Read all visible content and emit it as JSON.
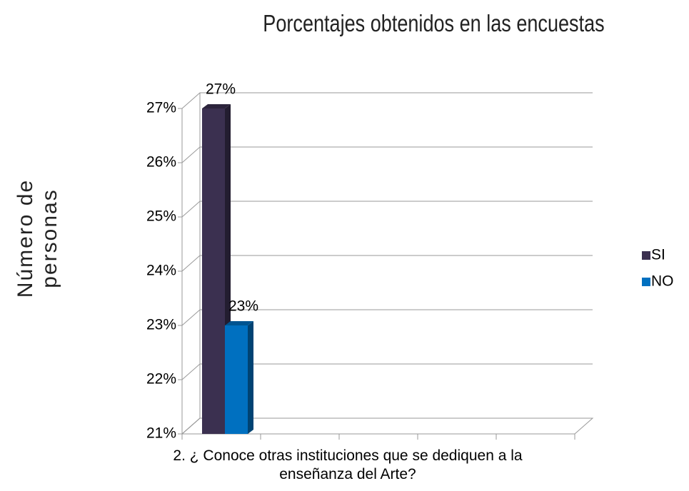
{
  "chart_data": {
    "type": "bar3d",
    "title": "Porcentajes obtenidos en las encuestas",
    "y_label": "Número de personas",
    "categories": [
      "2. ¿ Conoce otras instituciones que se dediquen a la enseñanza del Arte?"
    ],
    "series": [
      {
        "name": "SI",
        "color": "#3b3050",
        "values": [
          27
        ],
        "value_labels": [
          "27%"
        ]
      },
      {
        "name": "NO",
        "color": "#0070c0",
        "values": [
          23
        ],
        "value_labels": [
          "23%"
        ]
      }
    ],
    "ylim": [
      21,
      27
    ],
    "yticks": [
      {
        "value": 21,
        "label": "21%"
      },
      {
        "value": 22,
        "label": "22%"
      },
      {
        "value": 23,
        "label": "23%"
      },
      {
        "value": 24,
        "label": "24%"
      },
      {
        "value": 25,
        "label": "25%"
      },
      {
        "value": 26,
        "label": "26%"
      },
      {
        "value": 27,
        "label": "27%"
      }
    ],
    "grid": true,
    "legend": "right"
  }
}
